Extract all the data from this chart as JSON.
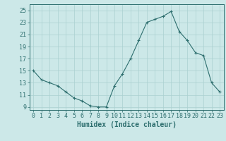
{
  "x": [
    0,
    1,
    2,
    3,
    4,
    5,
    6,
    7,
    8,
    9,
    10,
    11,
    12,
    13,
    14,
    15,
    16,
    17,
    18,
    19,
    20,
    21,
    22,
    23
  ],
  "y": [
    15.0,
    13.5,
    13.0,
    12.5,
    11.5,
    10.5,
    10.0,
    9.2,
    9.0,
    9.0,
    12.5,
    14.5,
    17.0,
    20.0,
    23.0,
    23.5,
    24.0,
    24.8,
    21.5,
    20.0,
    18.0,
    17.5,
    13.0,
    11.5
  ],
  "line_color": "#2d6e6e",
  "marker": "+",
  "marker_size": 3,
  "bg_color": "#cce8e8",
  "grid_color": "#aad0d0",
  "xlabel": "Humidex (Indice chaleur)",
  "ylim": [
    8.5,
    26
  ],
  "xlim": [
    -0.5,
    23.5
  ],
  "yticks": [
    9,
    11,
    13,
    15,
    17,
    19,
    21,
    23,
    25
  ],
  "xticks": [
    0,
    1,
    2,
    3,
    4,
    5,
    6,
    7,
    8,
    9,
    10,
    11,
    12,
    13,
    14,
    15,
    16,
    17,
    18,
    19,
    20,
    21,
    22,
    23
  ],
  "tick_color": "#2d6e6e",
  "label_color": "#2d6e6e",
  "font_size": 6,
  "xlabel_size": 7
}
